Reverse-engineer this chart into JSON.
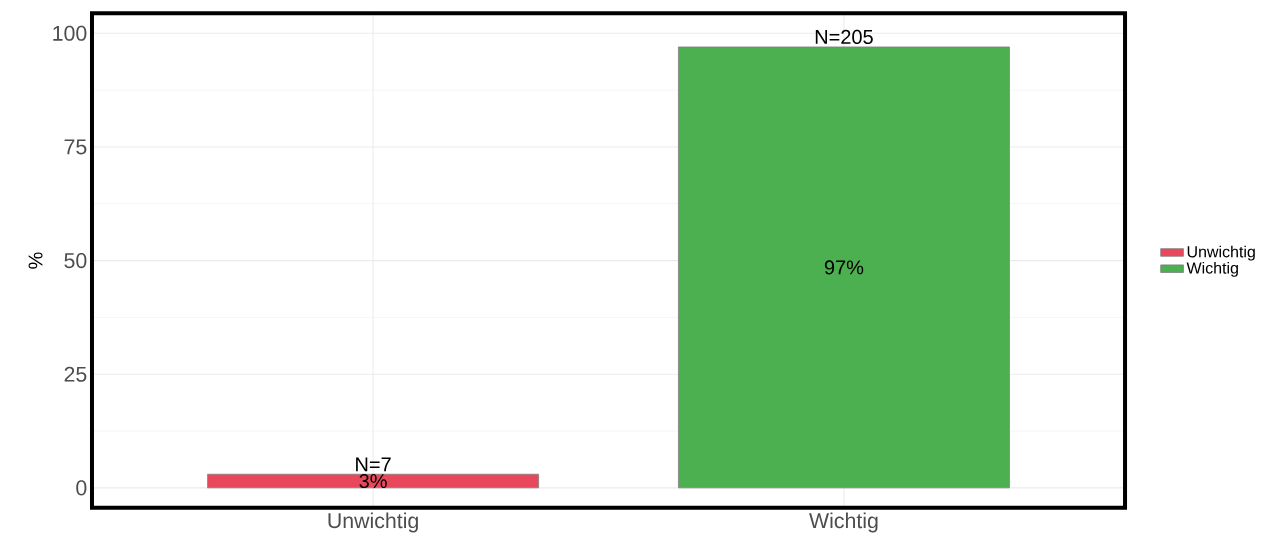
{
  "chart_data": {
    "type": "bar",
    "ylabel": "%",
    "categories": [
      "Unwichtig",
      "Wichtig"
    ],
    "series": [
      {
        "name": "Unwichtig",
        "color": "#e8475c",
        "values": [
          3,
          null
        ],
        "value_labels": [
          "3%",
          null
        ]
      },
      {
        "name": "Wichtig",
        "color": "#4caf50",
        "values": [
          null,
          97
        ],
        "value_labels": [
          null,
          "97%"
        ]
      }
    ],
    "annotations": [
      {
        "text": "N=7",
        "x": "Unwichtig",
        "y": 3
      },
      {
        "text": "N=205",
        "x": "Wichtig",
        "y": 97
      }
    ],
    "ylim": [
      -4.4,
      104.4
    ],
    "yticks": [
      0,
      25,
      50,
      75,
      100
    ],
    "grid": true,
    "legend": "right"
  }
}
